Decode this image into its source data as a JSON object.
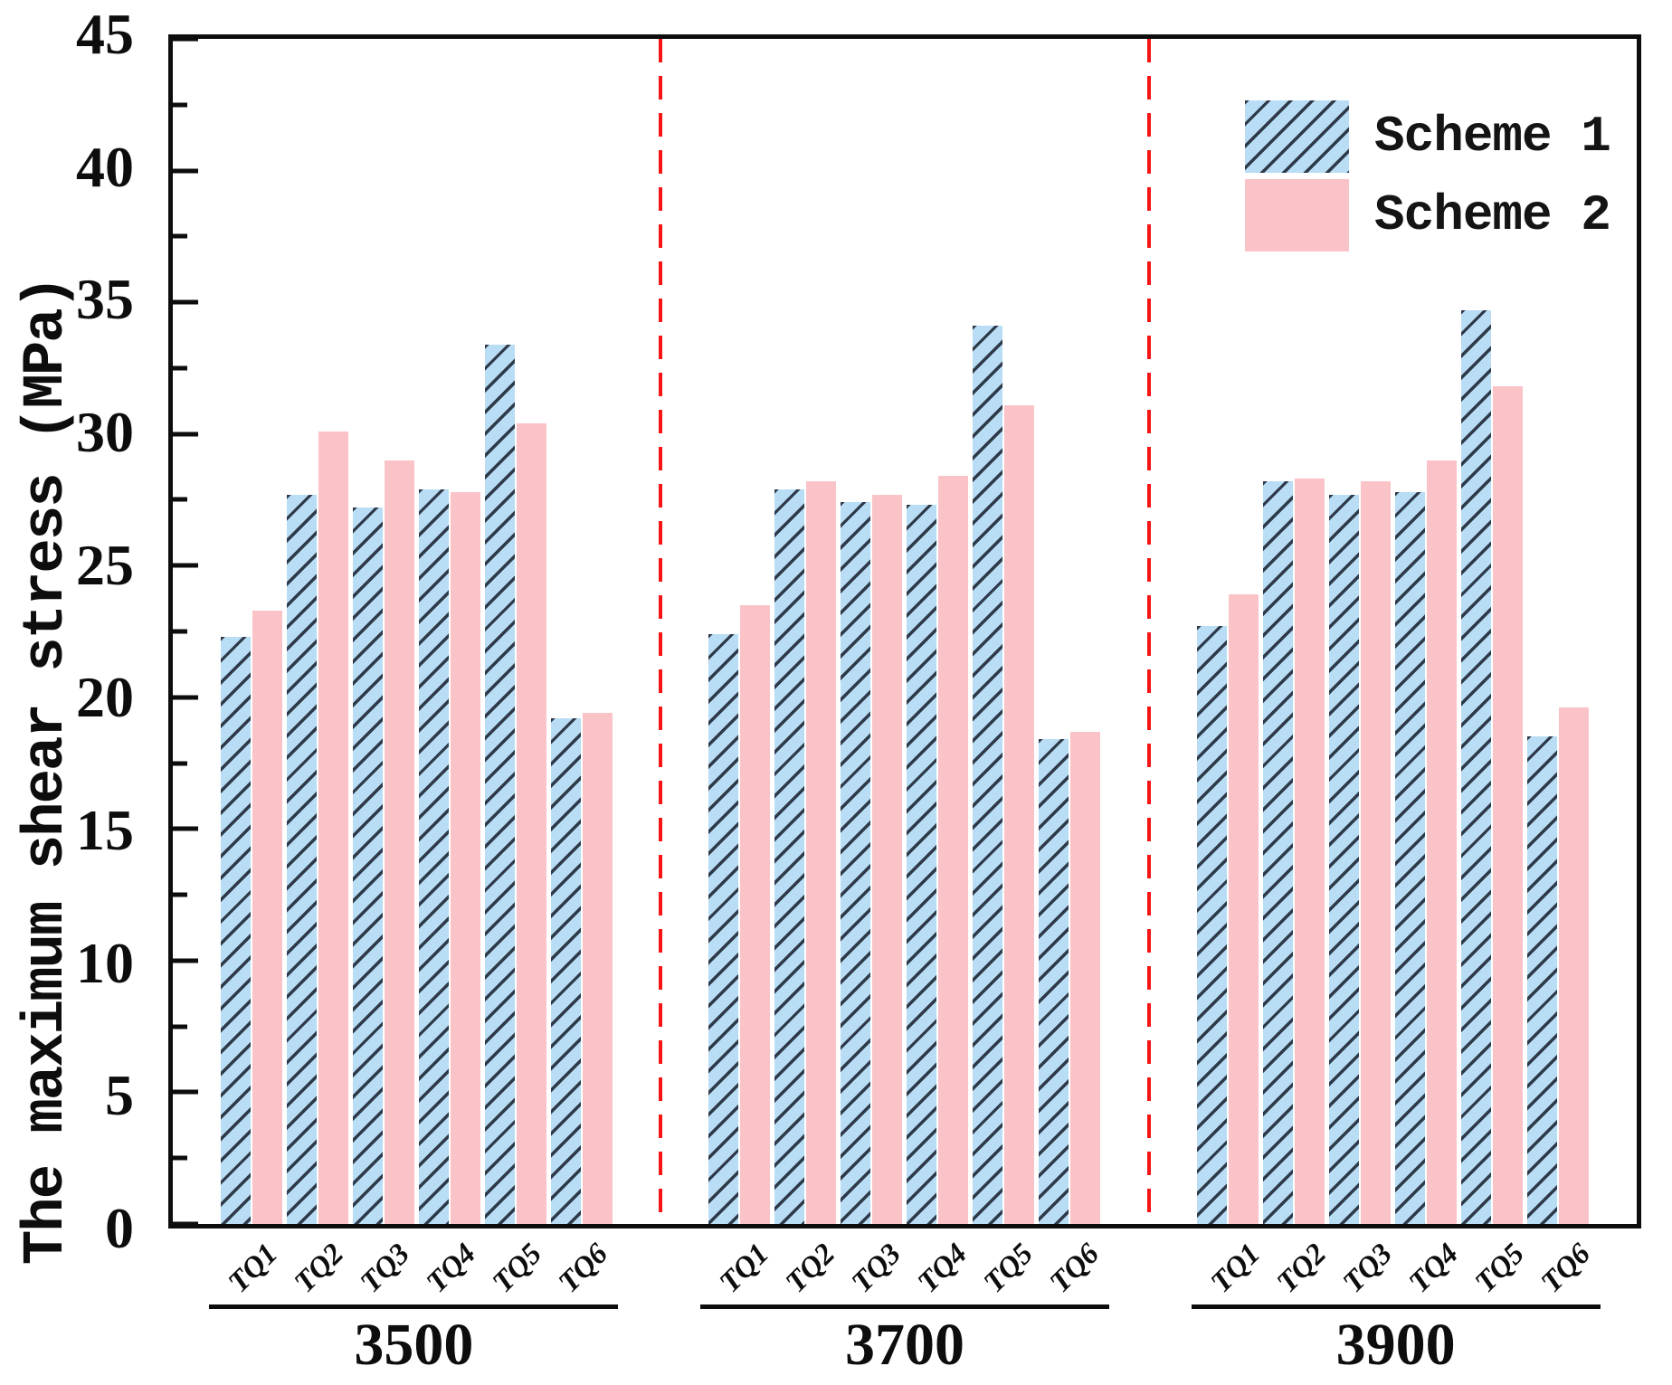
{
  "chart_data": {
    "type": "bar",
    "title": "",
    "ylabel": "The maximum shear stress (MPa)",
    "ylim": [
      0,
      45
    ],
    "y_major_ticks": [
      0,
      5,
      10,
      15,
      20,
      25,
      30,
      35,
      40,
      45
    ],
    "y_minor_step": 2.5,
    "grid": false,
    "legend_position": "upper right",
    "categories": [
      "TQ1",
      "TQ2",
      "TQ3",
      "TQ4",
      "TQ5",
      "TQ6"
    ],
    "groups": [
      {
        "label": "3500",
        "scheme1": [
          22.3,
          27.7,
          27.2,
          27.9,
          33.4,
          19.2
        ],
        "scheme2": [
          23.3,
          30.1,
          29.0,
          27.8,
          30.4,
          19.4
        ]
      },
      {
        "label": "3700",
        "scheme1": [
          22.4,
          27.9,
          27.4,
          27.3,
          34.1,
          18.4
        ],
        "scheme2": [
          23.5,
          28.2,
          27.7,
          28.4,
          31.1,
          18.7
        ]
      },
      {
        "label": "3900",
        "scheme1": [
          22.7,
          28.2,
          27.7,
          27.8,
          34.7,
          18.5
        ],
        "scheme2": [
          23.9,
          28.3,
          28.2,
          29.0,
          31.8,
          19.6
        ]
      }
    ],
    "series": [
      {
        "name": "Scheme 1",
        "fill": "#b8ddf4",
        "hatch": "/",
        "hatch_color": "#2e3a4a"
      },
      {
        "name": "Scheme 2",
        "fill": "#fac3c8"
      }
    ],
    "colors": {
      "separator_line": "#f61414",
      "axis": "#0d0d0d",
      "background": "#ffffff"
    }
  }
}
